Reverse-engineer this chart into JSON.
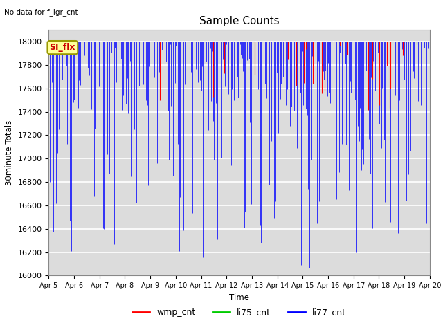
{
  "title": "Sample Counts",
  "ylabel": "30minute Totals",
  "xlabel": "Time",
  "top_left_note": "No data for f_lgr_cnt",
  "annotation_box": "SI_flx",
  "ylim": [
    16000,
    18100
  ],
  "yticks": [
    16000,
    16200,
    16400,
    16600,
    16800,
    17000,
    17200,
    17400,
    17600,
    17800,
    18000
  ],
  "baseline": 18000,
  "bg_color": "#e8e8e8",
  "plot_bg_color": "#dcdcdc",
  "colors": {
    "wmp_cnt": "#ff0000",
    "li75_cnt": "#00cc00",
    "li77_cnt": "#0000ff"
  },
  "xtick_labels": [
    "Apr 5",
    "Apr 6",
    "Apr 7",
    "Apr 8",
    "Apr 9",
    "Apr 10",
    "Apr 11",
    "Apr 12",
    "Apr 13",
    "Apr 14",
    "Apr 15",
    "Apr 16",
    "Apr 17",
    "Apr 18",
    "Apr 19",
    "Apr 20"
  ],
  "num_points": 480,
  "seed": 99
}
